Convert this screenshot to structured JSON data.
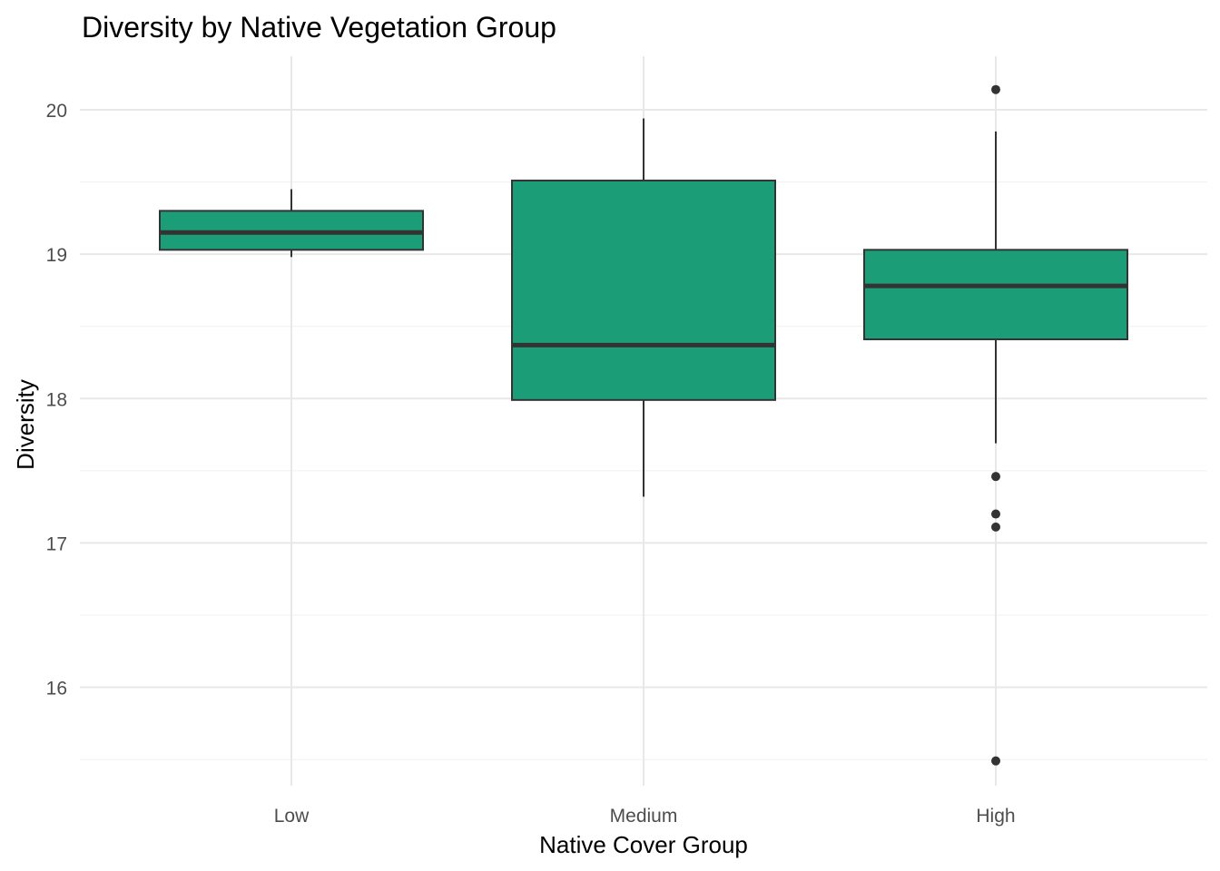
{
  "chart_data": {
    "type": "boxplot",
    "title": "Diversity by Native Vegetation Group",
    "xlabel": "Native Cover Group",
    "ylabel": "Diversity",
    "categories": [
      "Low",
      "Medium",
      "High"
    ],
    "ylim": [
      15.3,
      20.4
    ],
    "yticks": [
      16,
      17,
      18,
      19,
      20
    ],
    "grid": true,
    "fill_color": "#1b9e77",
    "stroke_color": "#333333",
    "boxes": [
      {
        "category": "Low",
        "whisker_low": 18.98,
        "q1": 19.03,
        "median": 19.15,
        "q3": 19.3,
        "whisker_high": 19.45,
        "outliers": []
      },
      {
        "category": "Medium",
        "whisker_low": 17.32,
        "q1": 17.99,
        "median": 18.37,
        "q3": 19.51,
        "whisker_high": 19.94,
        "outliers": []
      },
      {
        "category": "High",
        "whisker_low": 17.69,
        "q1": 18.41,
        "median": 18.78,
        "q3": 19.03,
        "whisker_high": 19.85,
        "outliers": [
          20.14,
          17.46,
          17.2,
          17.11,
          15.49
        ]
      }
    ]
  }
}
